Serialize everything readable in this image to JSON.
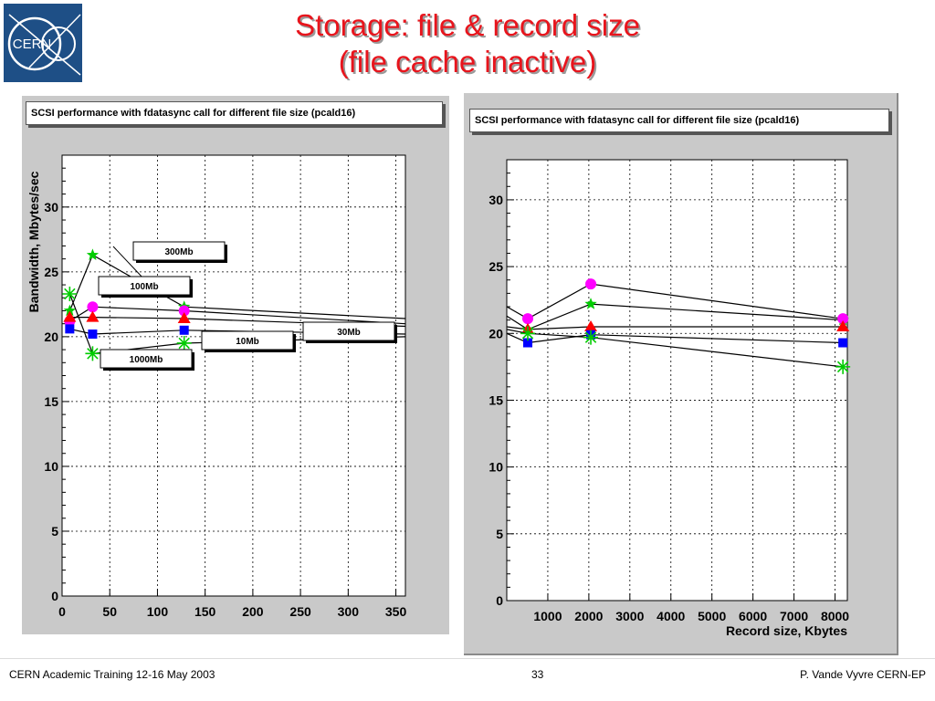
{
  "header": {
    "title_line1": "Storage: file & record size",
    "title_line2": "(file cache inactive)",
    "logo_text": "CERN"
  },
  "footer": {
    "left": "CERN Academic Training 12-16 May 2003",
    "center": "33",
    "right": "P. Vande Vyvre CERN-EP"
  },
  "chart_data": [
    {
      "type": "line",
      "title": "SCSI performance with fdatasync call for different file size (pcald16)",
      "xlabel": "",
      "ylabel": "Bandwidth, Mbytes/sec",
      "xlim": [
        0,
        360
      ],
      "ylim": [
        0,
        34
      ],
      "xticks": [
        0,
        50,
        100,
        150,
        200,
        250,
        300,
        350
      ],
      "yticks": [
        0,
        5,
        10,
        15,
        20,
        25,
        30
      ],
      "grid": true,
      "series": [
        {
          "name": "300Mb",
          "marker": "star",
          "color": "#00cc00",
          "x": [
            8,
            32,
            128,
            360
          ],
          "y": [
            22.0,
            26.3,
            22.3,
            21.4
          ]
        },
        {
          "name": "100Mb",
          "marker": "circle",
          "color": "#ff00ff",
          "x": [
            8,
            32,
            128,
            360
          ],
          "y": [
            21.2,
            22.3,
            22.0,
            21.0
          ]
        },
        {
          "name": "30Mb",
          "marker": "triangle",
          "color": "#ff0000",
          "x": [
            8,
            32,
            128,
            360
          ],
          "y": [
            21.5,
            21.5,
            21.4,
            20.8
          ]
        },
        {
          "name": "10Mb",
          "marker": "square",
          "color": "#0000ff",
          "x": [
            8,
            32,
            128,
            360
          ],
          "y": [
            20.6,
            20.2,
            20.5,
            20.2
          ]
        },
        {
          "name": "1000Mb",
          "marker": "asterisk",
          "color": "#00cc00",
          "x": [
            8,
            32,
            128,
            360
          ],
          "y": [
            23.3,
            18.7,
            19.5,
            20.0
          ]
        }
      ],
      "labels": [
        {
          "text": "300Mb",
          "series": "300Mb"
        },
        {
          "text": "100Mb",
          "series": "100Mb"
        },
        {
          "text": "10Mb",
          "series": "10Mb"
        },
        {
          "text": "30Mb",
          "series": "30Mb"
        },
        {
          "text": "1000Mb",
          "series": "1000Mb"
        }
      ]
    },
    {
      "type": "line",
      "title": "SCSI performance with fdatasync call for different file size (pcald16)",
      "xlabel": "Record size, Kbytes",
      "ylabel": "",
      "xlim": [
        0,
        8300
      ],
      "ylim": [
        0,
        33
      ],
      "xticks": [
        1000,
        2000,
        3000,
        4000,
        5000,
        6000,
        7000,
        8000
      ],
      "yticks": [
        0,
        5,
        10,
        15,
        20,
        25,
        30
      ],
      "grid": true,
      "series": [
        {
          "name": "300Mb",
          "marker": "star",
          "color": "#00cc00",
          "x": [
            0,
            512,
            2048,
            8192
          ],
          "y": [
            21.3,
            20.3,
            22.2,
            21.0
          ]
        },
        {
          "name": "100Mb",
          "marker": "circle",
          "color": "#ff00ff",
          "x": [
            0,
            512,
            2048,
            8192
          ],
          "y": [
            22.0,
            21.1,
            23.7,
            21.1
          ]
        },
        {
          "name": "30Mb",
          "marker": "triangle",
          "color": "#ff0000",
          "x": [
            0,
            512,
            2048,
            8192
          ],
          "y": [
            20.5,
            20.3,
            20.5,
            20.5
          ]
        },
        {
          "name": "10Mb",
          "marker": "square",
          "color": "#0000ff",
          "x": [
            0,
            512,
            2048,
            8192
          ],
          "y": [
            20.0,
            19.3,
            19.9,
            19.3
          ]
        },
        {
          "name": "1000Mb",
          "marker": "asterisk",
          "color": "#00cc00",
          "x": [
            0,
            512,
            2048,
            8192
          ],
          "y": [
            20.3,
            20.0,
            19.7,
            17.5
          ]
        }
      ]
    }
  ]
}
